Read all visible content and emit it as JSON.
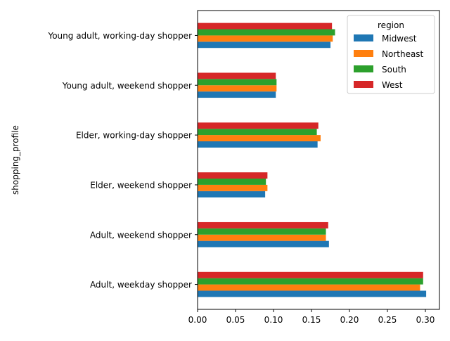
{
  "chart_data": {
    "type": "bar",
    "orientation": "horizontal",
    "xlabel": "",
    "ylabel": "shopping_profile",
    "xlim": [
      0.0,
      0.3185
    ],
    "xticks": [
      "0.00",
      "0.05",
      "0.10",
      "0.15",
      "0.20",
      "0.25",
      "0.30"
    ],
    "grid": false,
    "legend": {
      "title": "region",
      "placement": "top-right"
    },
    "categories": [
      "Adult, weekday shopper",
      "Adult, weekend shopper",
      "Elder, weekend shopper",
      "Elder, working-day shopper",
      "Young adult, weekend shopper",
      "Young adult, working-day shopper"
    ],
    "series": [
      {
        "name": "Midwest",
        "color": "#1f77b4",
        "values": [
          0.301,
          0.173,
          0.089,
          0.158,
          0.103,
          0.175
        ]
      },
      {
        "name": "Northeast",
        "color": "#ff7f0e",
        "values": [
          0.293,
          0.169,
          0.092,
          0.162,
          0.104,
          0.178
        ]
      },
      {
        "name": "South",
        "color": "#2ca02c",
        "values": [
          0.297,
          0.169,
          0.09,
          0.157,
          0.104,
          0.181
        ]
      },
      {
        "name": "West",
        "color": "#d62728",
        "values": [
          0.297,
          0.172,
          0.092,
          0.159,
          0.103,
          0.177
        ]
      }
    ]
  }
}
